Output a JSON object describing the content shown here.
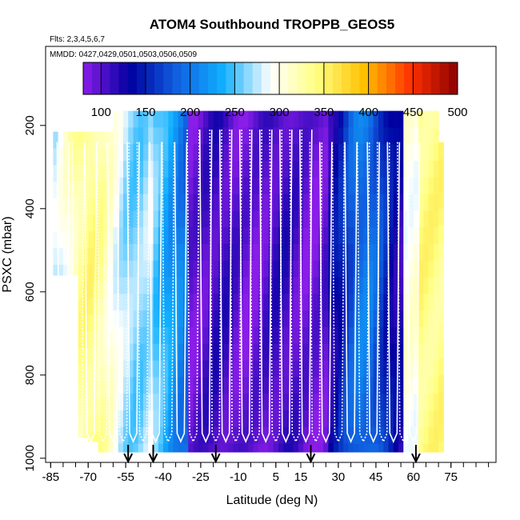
{
  "chart_data": {
    "type": "heatmap",
    "title": "ATOM4 Southbound TROPPB_GEOS5",
    "flights_note": "Flts: 2,3,4,5,6,7",
    "dates_note": "MMDD: 0427,0429,0501,0503,0506,0509",
    "xlabel": "Latitude (deg N)",
    "ylabel": "PSXC (mbar)",
    "xlim": [
      -87,
      93
    ],
    "ylim": [
      1010,
      10
    ],
    "x_ticks": [
      -85,
      -70,
      -55,
      -40,
      -25,
      -10,
      5,
      15,
      30,
      45,
      60,
      75
    ],
    "y_ticks": [
      200,
      400,
      600,
      800,
      1000
    ],
    "colorbar": {
      "min": 80,
      "max": 500,
      "ticks": [
        100,
        150,
        200,
        250,
        300,
        350,
        400,
        450,
        500
      ],
      "colors": [
        "#8a1de8",
        "#0000a0",
        "#1060e0",
        "#10b0ff",
        "#ffffff",
        "#ffff80",
        "#ffc000",
        "#ff3000",
        "#8b0000"
      ]
    },
    "profile_latitudes": [
      -80,
      -74,
      -69,
      -64,
      -60,
      -56,
      -52,
      -48,
      -43,
      -38,
      -33,
      -28,
      -23,
      -19,
      -15,
      -11,
      -7,
      -3,
      1,
      5,
      9,
      13,
      17,
      21,
      25,
      30,
      35,
      40,
      44,
      48,
      52,
      56,
      60
    ],
    "arrow_latitudes": [
      -54,
      -44,
      -19,
      19,
      61
    ]
  }
}
